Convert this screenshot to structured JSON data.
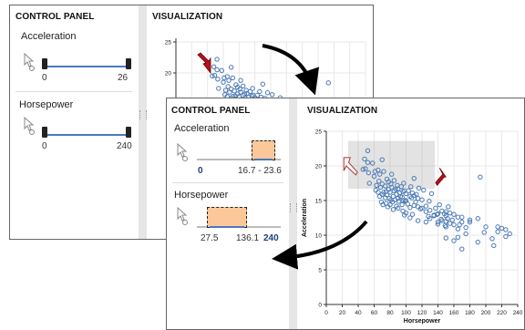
{
  "back_panel": {
    "control_title": "CONTROL PANEL",
    "viz_title": "VISUALIZATION",
    "acceleration": {
      "label": "Acceleration",
      "min": "0",
      "max": "26"
    },
    "horsepower": {
      "label": "Horsepower",
      "min": "0",
      "max": "240"
    },
    "y_ticks": [
      "25",
      "20"
    ]
  },
  "front_panel": {
    "control_title": "CONTROL PANEL",
    "viz_title": "VISUALIZATION",
    "acceleration": {
      "label": "Acceleration",
      "min": "0",
      "range": "16.7 - 23.6"
    },
    "horsepower": {
      "label": "Horsepower",
      "low": "27.5",
      "high": "136.1",
      "max": "240"
    }
  },
  "chart_data": {
    "type": "scatter",
    "xlabel": "Horsepower",
    "ylabel": "Acceleration",
    "xlim": [
      0,
      240
    ],
    "ylim": [
      0,
      25
    ],
    "x_ticks": [
      0,
      20,
      40,
      60,
      80,
      100,
      120,
      140,
      160,
      180,
      200,
      220,
      240
    ],
    "y_ticks": [
      0,
      5,
      10,
      15,
      20,
      25
    ],
    "brush": {
      "x": [
        27.5,
        136.1
      ],
      "y": [
        16.7,
        23.6
      ]
    },
    "points": [
      [
        46,
        19.5
      ],
      [
        48,
        21
      ],
      [
        49,
        19.6
      ],
      [
        52,
        20.5
      ],
      [
        52,
        22.2
      ],
      [
        53,
        19
      ],
      [
        54,
        17.5
      ],
      [
        58,
        20.4
      ],
      [
        60,
        18.5
      ],
      [
        61,
        19.2
      ],
      [
        62,
        16.5
      ],
      [
        63,
        17.2
      ],
      [
        65,
        19.4
      ],
      [
        65,
        16.2
      ],
      [
        66,
        17.8
      ],
      [
        67,
        15.6
      ],
      [
        67,
        18.8
      ],
      [
        68,
        16.9
      ],
      [
        69,
        14.8
      ],
      [
        70,
        15.9
      ],
      [
        70,
        20.9
      ],
      [
        70,
        17.4
      ],
      [
        71,
        14.4
      ],
      [
        72,
        16.2
      ],
      [
        72,
        19.2
      ],
      [
        74,
        15.4
      ],
      [
        74,
        17.1
      ],
      [
        75,
        14.6
      ],
      [
        75,
        16.3
      ],
      [
        76,
        18.1
      ],
      [
        76,
        15.8
      ],
      [
        77,
        14.1
      ],
      [
        78,
        16.6
      ],
      [
        78,
        17.7
      ],
      [
        79,
        15.3
      ],
      [
        80,
        16.2
      ],
      [
        80,
        14.4
      ],
      [
        81,
        15.1
      ],
      [
        81,
        17.4
      ],
      [
        82,
        18.8
      ],
      [
        82,
        16.9
      ],
      [
        83,
        14.8
      ],
      [
        84,
        15.6
      ],
      [
        84,
        13.7
      ],
      [
        85,
        16.4
      ],
      [
        85,
        17.9
      ],
      [
        86,
        15.1
      ],
      [
        87,
        16.6
      ],
      [
        88,
        14.2
      ],
      [
        88,
        15.9
      ],
      [
        89,
        17.2
      ],
      [
        90,
        15.3
      ],
      [
        90,
        16.7
      ],
      [
        90,
        13.9
      ],
      [
        91,
        14.9
      ],
      [
        92,
        16.1
      ],
      [
        93,
        15.6
      ],
      [
        94,
        17.0
      ],
      [
        95,
        14.4
      ],
      [
        95,
        15.5
      ],
      [
        96,
        16.3
      ],
      [
        96,
        13.5
      ],
      [
        97,
        15.0
      ],
      [
        97,
        17.5
      ],
      [
        98,
        16.4
      ],
      [
        99,
        14.9
      ],
      [
        100,
        16.0
      ],
      [
        100,
        15.0
      ],
      [
        100,
        13.2
      ],
      [
        102,
        14.5
      ],
      [
        103,
        16.4
      ],
      [
        105,
        15.6
      ],
      [
        105,
        14.0
      ],
      [
        106,
        17.0
      ],
      [
        107,
        15.4
      ],
      [
        108,
        16.1
      ],
      [
        108,
        13.0
      ],
      [
        110,
        14.3
      ],
      [
        110,
        15.7
      ],
      [
        110,
        18.2
      ],
      [
        112,
        14.8
      ],
      [
        113,
        15.9
      ],
      [
        115,
        14.1
      ],
      [
        115,
        15.3
      ],
      [
        116,
        16.8
      ],
      [
        118,
        13.8
      ],
      [
        120,
        15.1
      ],
      [
        120,
        13.9
      ],
      [
        122,
        16.5
      ],
      [
        125,
        14.2
      ],
      [
        125,
        13.4
      ],
      [
        128,
        12.7
      ],
      [
        129,
        14.9
      ],
      [
        130,
        12.4
      ],
      [
        130,
        13.6
      ],
      [
        132,
        16.0
      ],
      [
        135,
        12.8
      ],
      [
        137,
        13.9
      ],
      [
        139,
        13.0
      ],
      [
        140,
        11.9
      ],
      [
        140,
        13.1
      ],
      [
        142,
        14.4
      ],
      [
        144,
        12.3
      ],
      [
        145,
        13.5
      ],
      [
        145,
        12.1
      ],
      [
        148,
        13.1
      ],
      [
        149,
        11.4
      ],
      [
        150,
        12.8
      ],
      [
        150,
        13.4
      ],
      [
        150,
        11.2
      ],
      [
        152,
        12.4
      ],
      [
        153,
        14.1
      ],
      [
        155,
        13.2
      ],
      [
        155,
        11.7
      ],
      [
        158,
        12.2
      ],
      [
        160,
        13.0
      ],
      [
        160,
        11.5
      ],
      [
        165,
        12.6
      ],
      [
        165,
        10.9
      ],
      [
        167,
        11.5
      ],
      [
        170,
        11.9
      ],
      [
        170,
        12.6
      ],
      [
        175,
        11.1
      ],
      [
        175,
        10.2
      ],
      [
        180,
        11.9
      ],
      [
        180,
        12.2
      ],
      [
        190,
        9.0
      ],
      [
        190,
        12.4
      ],
      [
        193,
        18.4
      ],
      [
        198,
        10.4
      ],
      [
        200,
        11.2
      ],
      [
        208,
        9.5
      ],
      [
        210,
        8.5
      ],
      [
        215,
        10.5
      ],
      [
        215,
        11.2
      ],
      [
        220,
        11.0
      ],
      [
        225,
        10.8
      ],
      [
        225,
        9.8
      ],
      [
        230,
        10.2
      ],
      [
        150,
        9.6
      ],
      [
        140,
        11.6
      ],
      [
        170,
        8.0
      ],
      [
        160,
        9.2
      ],
      [
        125,
        11.9
      ],
      [
        135,
        12.9
      ],
      [
        150,
        12.0
      ],
      [
        165,
        9.7
      ],
      [
        98,
        12.9
      ],
      [
        105,
        12.5
      ],
      [
        115,
        12.1
      ]
    ]
  }
}
